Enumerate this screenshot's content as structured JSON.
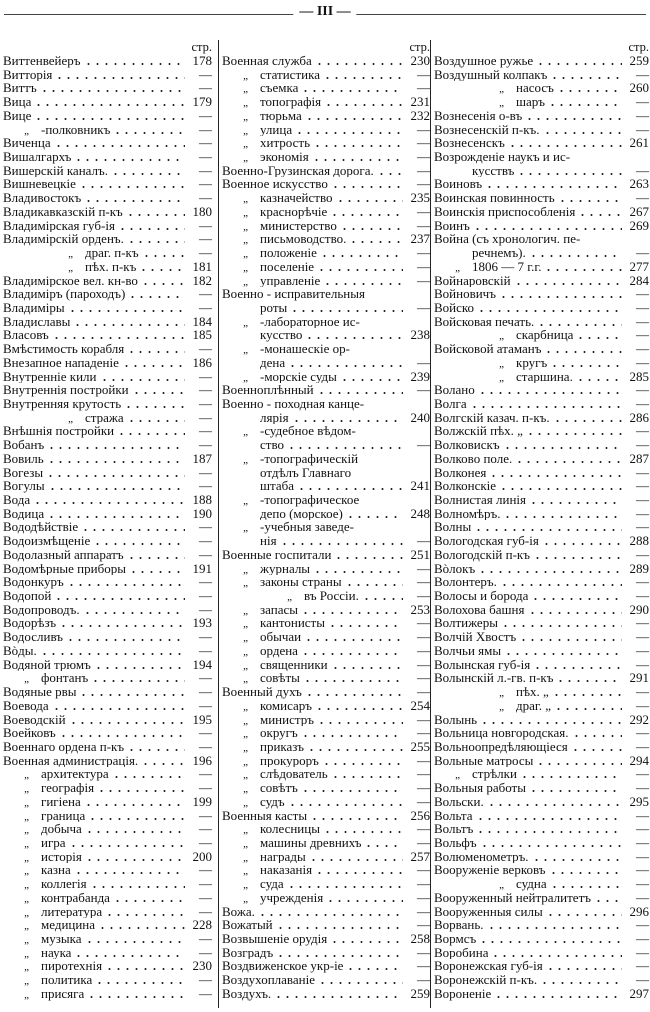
{
  "page_number": "— III —",
  "column_header": "стр.",
  "columns": [
    [
      {
        "k": "m",
        "t": "Виттенвейеръ",
        "p": "178"
      },
      {
        "k": "m",
        "t": "Витторія",
        "p": "—"
      },
      {
        "k": "m",
        "t": "Виттъ",
        "p": "—"
      },
      {
        "k": "m",
        "t": "Вица",
        "p": "179"
      },
      {
        "k": "m",
        "t": "Вице",
        "p": "—"
      },
      {
        "k": "s",
        "d": "„",
        "t": "-полковникъ",
        "p": "—"
      },
      {
        "k": "m",
        "t": "Виченца",
        "p": "—"
      },
      {
        "k": "m",
        "t": "Вишалгархъ",
        "p": "—"
      },
      {
        "k": "m",
        "t": "Вишерскій каналъ.",
        "p": "—"
      },
      {
        "k": "m",
        "t": "Вишневецкіе",
        "p": "—"
      },
      {
        "k": "m",
        "t": "Владивостокъ",
        "p": "—"
      },
      {
        "k": "m",
        "t": "Владикавказскій п-къ",
        "p": "180"
      },
      {
        "k": "m",
        "t": "Владимірская губ-ія",
        "p": "—"
      },
      {
        "k": "m",
        "t": "Владимірскій орденъ.",
        "p": "—"
      },
      {
        "k": "n",
        "d": "„",
        "t": "драг. п-къ",
        "p": "—"
      },
      {
        "k": "n",
        "d": "„",
        "t": "пѣх. п-къ",
        "p": "181"
      },
      {
        "k": "m",
        "t": "Владимірское вел. кн-во",
        "p": "182"
      },
      {
        "k": "m",
        "t": "Владиміръ (пароходъ)",
        "p": "—"
      },
      {
        "k": "m",
        "t": "Владиміры",
        "p": "—"
      },
      {
        "k": "m",
        "t": "Владиславы",
        "p": "184"
      },
      {
        "k": "m",
        "t": "Власовъ",
        "p": "185"
      },
      {
        "k": "m",
        "t": "Вмѣстимость корабля",
        "p": "—"
      },
      {
        "k": "m",
        "t": "Внезапное нападеніе",
        "p": "186"
      },
      {
        "k": "m",
        "t": "Внутренніе кили",
        "p": "—"
      },
      {
        "k": "m",
        "t": "Внутреннія постройки",
        "p": "—"
      },
      {
        "k": "m",
        "t": "Внутренняя крутость",
        "p": "—"
      },
      {
        "k": "n",
        "d": "„",
        "t": "стража",
        "p": "—"
      },
      {
        "k": "m",
        "t": "Внѣшнія постройки",
        "p": "—"
      },
      {
        "k": "m",
        "t": "Вобанъ",
        "p": "—"
      },
      {
        "k": "m",
        "t": "Вовиль",
        "p": "187"
      },
      {
        "k": "m",
        "t": "Вогезы",
        "p": "—"
      },
      {
        "k": "m",
        "t": "Вогулы",
        "p": "—"
      },
      {
        "k": "m",
        "t": "Вода",
        "p": "188"
      },
      {
        "k": "m",
        "t": "Водица",
        "p": "190"
      },
      {
        "k": "m",
        "t": "Вододѣйствіе",
        "p": "—"
      },
      {
        "k": "m",
        "t": "Водоизмѣщеніе",
        "p": "—"
      },
      {
        "k": "m",
        "t": "Водолазный аппаратъ",
        "p": "—"
      },
      {
        "k": "m",
        "t": "Водомѣрные приборы",
        "p": "191"
      },
      {
        "k": "m",
        "t": "Водонкуръ",
        "p": "—"
      },
      {
        "k": "m",
        "t": "Водопой",
        "p": "—"
      },
      {
        "k": "m",
        "t": "Водопроводъ.",
        "p": "—"
      },
      {
        "k": "m",
        "t": "Водорѣзъ",
        "p": "193"
      },
      {
        "k": "m",
        "t": "Водосливъ",
        "p": "—"
      },
      {
        "k": "m",
        "t": "Вòды.",
        "p": "—"
      },
      {
        "k": "m",
        "t": "Водяной трюмъ",
        "p": "194"
      },
      {
        "k": "s",
        "d": "„",
        "t": "фонтанъ",
        "p": "—"
      },
      {
        "k": "m",
        "t": "Водяные рвы",
        "p": "—"
      },
      {
        "k": "m",
        "t": "Воевода",
        "p": "—"
      },
      {
        "k": "m",
        "t": "Воеводскій",
        "p": "195"
      },
      {
        "k": "m",
        "t": "Воейковъ",
        "p": "—"
      },
      {
        "k": "m",
        "t": "Военнаго ордена п-къ",
        "p": "—"
      },
      {
        "k": "m",
        "t": "Военная администрація.",
        "p": "196"
      },
      {
        "k": "s",
        "d": "„",
        "t": "архитектура",
        "p": "—"
      },
      {
        "k": "s",
        "d": "„",
        "t": "географія",
        "p": "—"
      },
      {
        "k": "s",
        "d": "„",
        "t": "гигіена",
        "p": "199"
      },
      {
        "k": "s",
        "d": "„",
        "t": "граница",
        "p": "—"
      },
      {
        "k": "s",
        "d": "„",
        "t": "добыча",
        "p": "—"
      },
      {
        "k": "s",
        "d": "„",
        "t": "игра",
        "p": "—"
      },
      {
        "k": "s",
        "d": "„",
        "t": "исторія",
        "p": "200"
      },
      {
        "k": "s",
        "d": "„",
        "t": "казна",
        "p": "—"
      },
      {
        "k": "s",
        "d": "„",
        "t": "коллегія",
        "p": "—"
      },
      {
        "k": "s",
        "d": "„",
        "t": "контрабанда",
        "p": "—"
      },
      {
        "k": "s",
        "d": "„",
        "t": "литература",
        "p": "—"
      },
      {
        "k": "s",
        "d": "„",
        "t": "медицина",
        "p": "228"
      },
      {
        "k": "s",
        "d": "„",
        "t": "музыка",
        "p": "—"
      },
      {
        "k": "s",
        "d": "„",
        "t": "наука",
        "p": "—"
      },
      {
        "k": "s",
        "d": "„",
        "t": "пиротехнія",
        "p": "230"
      },
      {
        "k": "s",
        "d": "„",
        "t": "политика",
        "p": "—"
      },
      {
        "k": "s",
        "d": "„",
        "t": "присяга",
        "p": "—"
      }
    ],
    [
      {
        "k": "m",
        "t": "Военная служба",
        "p": "230"
      },
      {
        "k": "s",
        "d": "„",
        "t": "статистика",
        "p": "—"
      },
      {
        "k": "s",
        "d": "„",
        "t": "съемка",
        "p": "—"
      },
      {
        "k": "s",
        "d": "„",
        "t": "топографія",
        "p": "231"
      },
      {
        "k": "s",
        "d": "„",
        "t": "тюрьма",
        "p": "232"
      },
      {
        "k": "s",
        "d": "„",
        "t": "улица",
        "p": "—"
      },
      {
        "k": "s",
        "d": "„",
        "t": "хитрость",
        "p": "—"
      },
      {
        "k": "s",
        "d": "„",
        "t": "экономія",
        "p": "—"
      },
      {
        "k": "m",
        "t": "Военно-Грузинская дорога.",
        "p": "—"
      },
      {
        "k": "m",
        "t": "Военное искусство",
        "p": "—"
      },
      {
        "k": "s",
        "d": "„",
        "t": "казначейство",
        "p": "235"
      },
      {
        "k": "s",
        "d": "„",
        "t": "краснорѣчіе",
        "p": "—"
      },
      {
        "k": "s",
        "d": "„",
        "t": "министерство",
        "p": "—"
      },
      {
        "k": "s",
        "d": "„",
        "t": "письмоводство.",
        "p": "237"
      },
      {
        "k": "s",
        "d": "„",
        "t": "положеніе",
        "p": "—"
      },
      {
        "k": "s",
        "d": "„",
        "t": "поселеніе",
        "p": "—"
      },
      {
        "k": "s",
        "d": "„",
        "t": "управленіе",
        "p": "—"
      },
      {
        "k": "m",
        "t": "Военно - исправительныя"
      },
      {
        "k": "c",
        "t": "роты",
        "p": "—"
      },
      {
        "k": "s",
        "d": "„",
        "t": "-лабораторное ис-"
      },
      {
        "k": "c",
        "t": "кусство",
        "p": "238"
      },
      {
        "k": "s",
        "d": "„",
        "t": "-монашескіе ор-"
      },
      {
        "k": "c",
        "t": "дена",
        "p": "—"
      },
      {
        "k": "s",
        "d": "„",
        "t": "-морскіе суды",
        "p": "239"
      },
      {
        "k": "m",
        "t": "Военноплѣнный",
        "p": "—"
      },
      {
        "k": "m",
        "t": "Военно - походная канце-"
      },
      {
        "k": "c",
        "t": "лярія",
        "p": "240"
      },
      {
        "k": "s",
        "d": "„",
        "t": "-судебное вѣдом-"
      },
      {
        "k": "c",
        "t": "ство",
        "p": "—"
      },
      {
        "k": "s",
        "d": "„",
        "t": "-топографическій"
      },
      {
        "k": "c",
        "t": "отдѣлъ Главнаго"
      },
      {
        "k": "c",
        "t": "штаба",
        "p": "241"
      },
      {
        "k": "s",
        "d": "„",
        "t": "-топографическое"
      },
      {
        "k": "c",
        "t": "депо (морское)",
        "p": "248"
      },
      {
        "k": "s",
        "d": "„",
        "t": "-учебныя заведе-"
      },
      {
        "k": "c",
        "t": "нія",
        "p": "—"
      },
      {
        "k": "m",
        "t": "Военные госпитали",
        "p": "251"
      },
      {
        "k": "s",
        "d": "„",
        "t": "журналы",
        "p": "—"
      },
      {
        "k": "s",
        "d": "„",
        "t": "законы страны",
        "p": "—"
      },
      {
        "k": "n",
        "d": "„",
        "t": "въ Россіи.",
        "p": "—"
      },
      {
        "k": "s",
        "d": "„",
        "t": "запасы",
        "p": "253"
      },
      {
        "k": "s",
        "d": "„",
        "t": "кантонисты",
        "p": "—"
      },
      {
        "k": "s",
        "d": "„",
        "t": "обычаи",
        "p": "—"
      },
      {
        "k": "s",
        "d": "„",
        "t": "ордена",
        "p": "—"
      },
      {
        "k": "s",
        "d": "„",
        "t": "священники",
        "p": "—"
      },
      {
        "k": "s",
        "d": "„",
        "t": "совѣты",
        "p": "—"
      },
      {
        "k": "m",
        "t": "Военный духъ",
        "p": "—"
      },
      {
        "k": "s",
        "d": "„",
        "t": "комисаръ",
        "p": "254"
      },
      {
        "k": "s",
        "d": "„",
        "t": "министръ",
        "p": "—"
      },
      {
        "k": "s",
        "d": "„",
        "t": "округъ",
        "p": "—"
      },
      {
        "k": "s",
        "d": "„",
        "t": "приказъ",
        "p": "255"
      },
      {
        "k": "s",
        "d": "„",
        "t": "прокуроръ",
        "p": "—"
      },
      {
        "k": "s",
        "d": "„",
        "t": "слѣдователь",
        "p": "—"
      },
      {
        "k": "s",
        "d": "„",
        "t": "совѣтъ",
        "p": "—"
      },
      {
        "k": "s",
        "d": "„",
        "t": "судъ",
        "p": "—"
      },
      {
        "k": "m",
        "t": "Военныя касты",
        "p": "256"
      },
      {
        "k": "s",
        "d": "„",
        "t": "колесницы",
        "p": "—"
      },
      {
        "k": "s",
        "d": "„",
        "t": "машины древнихъ",
        "p": "—"
      },
      {
        "k": "s",
        "d": "„",
        "t": "награды",
        "p": "257"
      },
      {
        "k": "s",
        "d": "„",
        "t": "наказанія",
        "p": "—"
      },
      {
        "k": "s",
        "d": "„",
        "t": "суда",
        "p": "—"
      },
      {
        "k": "s",
        "d": "„",
        "t": "учрежденія",
        "p": "—"
      },
      {
        "k": "m",
        "t": "Вожа.",
        "p": "—"
      },
      {
        "k": "m",
        "t": "Вожатый",
        "p": "—"
      },
      {
        "k": "m",
        "t": "Возвышеніе орудія",
        "p": "258"
      },
      {
        "k": "m",
        "t": "Возградъ",
        "p": "—"
      },
      {
        "k": "m",
        "t": "Воздвиженское укр-іе",
        "p": "—"
      },
      {
        "k": "m",
        "t": "Воздухоплаваніе",
        "p": "—"
      },
      {
        "k": "m",
        "t": "Воздухъ.",
        "p": "259"
      }
    ],
    [
      {
        "k": "m",
        "t": "Воздушное ружье",
        "p": "259"
      },
      {
        "k": "m",
        "t": "Воздушный колпакъ",
        "p": "—"
      },
      {
        "k": "n",
        "d": "„",
        "t": "насосъ",
        "p": "260"
      },
      {
        "k": "n",
        "d": "„",
        "t": "шаръ",
        "p": "—"
      },
      {
        "k": "m",
        "t": "Вознесенія о-въ",
        "p": "—"
      },
      {
        "k": "m",
        "t": "Вознесенскій п-къ.",
        "p": "—"
      },
      {
        "k": "m",
        "t": "Вознесенскъ",
        "p": "261"
      },
      {
        "k": "m",
        "t": "Возрожденіе наукъ и ис-"
      },
      {
        "k": "c",
        "t": "кусствъ",
        "p": "—"
      },
      {
        "k": "m",
        "t": "Воиновъ",
        "p": "263"
      },
      {
        "k": "m",
        "t": "Воинская повинность",
        "p": "—"
      },
      {
        "k": "m",
        "t": "Воинскія приспособленія",
        "p": "267"
      },
      {
        "k": "m",
        "t": "Воинъ",
        "p": "269"
      },
      {
        "k": "m",
        "t": "Война (съ хронологич. пе-"
      },
      {
        "k": "c",
        "t": "речнемъ).",
        "p": "—"
      },
      {
        "k": "s",
        "d": "„",
        "t": "1806 — 7 г.г.",
        "p": "277"
      },
      {
        "k": "m",
        "t": "Войнаровскій",
        "p": "284"
      },
      {
        "k": "m",
        "t": "Войновичъ",
        "p": "—"
      },
      {
        "k": "m",
        "t": "Войско",
        "p": "—"
      },
      {
        "k": "m",
        "t": "Войсковая печать.",
        "p": "—"
      },
      {
        "k": "n",
        "d": "„",
        "t": "скарбница",
        "p": "—"
      },
      {
        "k": "m",
        "t": "Войсковой атаманъ",
        "p": "—"
      },
      {
        "k": "n",
        "d": "„",
        "t": "кругъ",
        "p": "—"
      },
      {
        "k": "n",
        "d": "„",
        "t": "старшина.",
        "p": "285"
      },
      {
        "k": "m",
        "t": "Волано",
        "p": "—"
      },
      {
        "k": "m",
        "t": "Волга",
        "p": "—"
      },
      {
        "k": "m",
        "t": "Волгскій казач. п-къ.",
        "p": "286"
      },
      {
        "k": "m",
        "t": "Волжскій пѣх.  „",
        "p": "—"
      },
      {
        "k": "m",
        "t": "Волковискъ",
        "p": "—"
      },
      {
        "k": "m",
        "t": "Волково поле.",
        "p": "287"
      },
      {
        "k": "m",
        "t": "Волконея",
        "p": "—"
      },
      {
        "k": "m",
        "t": "Волконскіе",
        "p": "—"
      },
      {
        "k": "m",
        "t": "Волнистая линія",
        "p": "—"
      },
      {
        "k": "m",
        "t": "Волномѣръ.",
        "p": "—"
      },
      {
        "k": "m",
        "t": "Волны",
        "p": "—"
      },
      {
        "k": "m",
        "t": "Вологодская губ-ія",
        "p": "288"
      },
      {
        "k": "m",
        "t": "Вологодскій п-къ",
        "p": "—"
      },
      {
        "k": "m",
        "t": "Вòлокъ",
        "p": "289"
      },
      {
        "k": "m",
        "t": "Волонтеръ.",
        "p": "—"
      },
      {
        "k": "m",
        "t": "Волосы и борода",
        "p": "—"
      },
      {
        "k": "m",
        "t": "Волохова башня",
        "p": "290"
      },
      {
        "k": "m",
        "t": "Волтижеры",
        "p": "—"
      },
      {
        "k": "m",
        "t": "Волчій Хвостъ",
        "p": "—"
      },
      {
        "k": "m",
        "t": "Волчьи ямы",
        "p": "—"
      },
      {
        "k": "m",
        "t": "Волынская губ-ія",
        "p": "—"
      },
      {
        "k": "m",
        "t": "Волынскій л.-гв. п-къ",
        "p": "291"
      },
      {
        "k": "n",
        "d": "„",
        "t": "пѣх.  „",
        "p": "—"
      },
      {
        "k": "n",
        "d": "„",
        "t": "драг.  „",
        "p": "—"
      },
      {
        "k": "m",
        "t": "Волынь",
        "p": "292"
      },
      {
        "k": "m",
        "t": "Вольница новгородская.",
        "p": "—"
      },
      {
        "k": "m",
        "t": "Вольноопредѣляющіеся",
        "p": "—"
      },
      {
        "k": "m",
        "t": "Вольные матросы",
        "p": "294"
      },
      {
        "k": "s",
        "d": "„",
        "t": "стрѣлки",
        "p": "—"
      },
      {
        "k": "m",
        "t": "Вольныя работы",
        "p": "—"
      },
      {
        "k": "m",
        "t": "Вольски.",
        "p": "295"
      },
      {
        "k": "m",
        "t": "Вольта",
        "p": "—"
      },
      {
        "k": "m",
        "t": "Вольтъ",
        "p": "—"
      },
      {
        "k": "m",
        "t": "Вольфъ",
        "p": "—"
      },
      {
        "k": "m",
        "t": "Волюменометръ.",
        "p": "—"
      },
      {
        "k": "m",
        "t": "Вооруженіе верковъ",
        "p": "—"
      },
      {
        "k": "n",
        "d": "„",
        "t": "судна",
        "p": "—"
      },
      {
        "k": "m",
        "t": "Вооруженный нейтралитетъ",
        "p": "—"
      },
      {
        "k": "m",
        "t": "Вооруженныя силы",
        "p": "296"
      },
      {
        "k": "m",
        "t": "Ворвань.",
        "p": "—"
      },
      {
        "k": "m",
        "t": "Вормсъ",
        "p": "—"
      },
      {
        "k": "m",
        "t": "Воробина",
        "p": "—"
      },
      {
        "k": "m",
        "t": "Воронежская губ-ія",
        "p": "—"
      },
      {
        "k": "m",
        "t": "Воронежскій п-къ.",
        "p": "—"
      },
      {
        "k": "m",
        "t": "Вороненіе",
        "p": "297"
      }
    ]
  ]
}
